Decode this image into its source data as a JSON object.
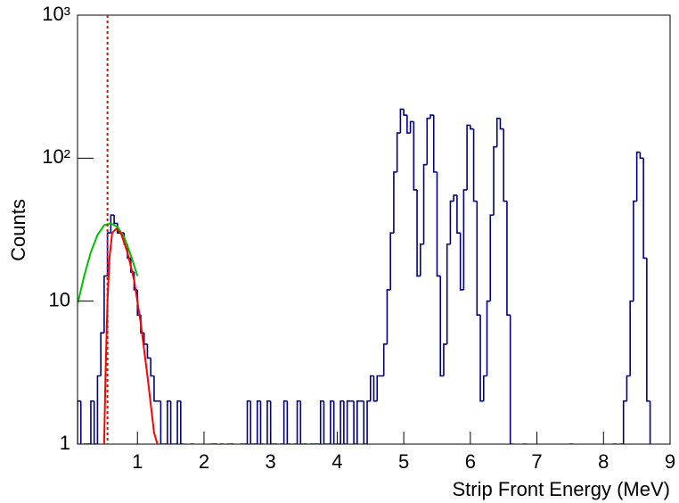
{
  "chart_data": {
    "type": "histogram",
    "x_label": "Strip Front Energy (MeV)",
    "y_label": "Counts",
    "xlim": [
      0.1,
      9
    ],
    "ylim": [
      1,
      1000
    ],
    "log_y": true,
    "xticks": [
      1,
      2,
      3,
      4,
      5,
      6,
      7,
      8,
      9
    ],
    "yticks": [
      1,
      10,
      {
        "value": 100,
        "label": "10²"
      },
      {
        "value": 1000,
        "label": "10³"
      }
    ],
    "color": "#000080",
    "bins": [
      0.1,
      0.15,
      0.2,
      0.25,
      0.3,
      0.35,
      0.4,
      0.45,
      0.5,
      0.55,
      0.6,
      0.65,
      0.7,
      0.75,
      0.8,
      0.85,
      0.9,
      0.95,
      1.0,
      1.05,
      1.1,
      1.15,
      1.2,
      1.25,
      1.3,
      1.35,
      1.4,
      1.45,
      1.5,
      1.55,
      1.6,
      1.65,
      1.7,
      1.75,
      1.8,
      1.85,
      1.9,
      1.95,
      2.0,
      2.05,
      2.1,
      2.15,
      2.2,
      2.25,
      2.3,
      2.35,
      2.4,
      2.45,
      2.5,
      2.55,
      2.6,
      2.65,
      2.7,
      2.75,
      2.8,
      2.85,
      2.9,
      2.95,
      3.0,
      3.05,
      3.1,
      3.15,
      3.2,
      3.25,
      3.3,
      3.35,
      3.4,
      3.45,
      3.5,
      3.55,
      3.6,
      3.65,
      3.7,
      3.75,
      3.8,
      3.85,
      3.9,
      3.95,
      4.0,
      4.05,
      4.1,
      4.15,
      4.2,
      4.25,
      4.3,
      4.35,
      4.4,
      4.45,
      4.5,
      4.55,
      4.6,
      4.65,
      4.7,
      4.75,
      4.8,
      4.85,
      4.9,
      4.95,
      5.0,
      5.05,
      5.1,
      5.15,
      5.2,
      5.25,
      5.3,
      5.35,
      5.4,
      5.45,
      5.5,
      5.55,
      5.6,
      5.65,
      5.7,
      5.75,
      5.8,
      5.85,
      5.9,
      5.95,
      6.0,
      6.05,
      6.1,
      6.15,
      6.2,
      6.25,
      6.3,
      6.35,
      6.4,
      6.45,
      6.5,
      6.55,
      6.6,
      6.65,
      6.7,
      6.75,
      6.8,
      6.85,
      6.9,
      6.95,
      7.0,
      7.05,
      7.1,
      7.15,
      7.2,
      7.25,
      7.3,
      7.35,
      7.4,
      7.45,
      7.5,
      7.55,
      7.6,
      7.65,
      7.7,
      7.75,
      7.8,
      7.85,
      7.9,
      7.95,
      8.0,
      8.05,
      8.1,
      8.15,
      8.2,
      8.25,
      8.3,
      8.35,
      8.4,
      8.45,
      8.5,
      8.55,
      8.6,
      8.65,
      8.7,
      8.75,
      8.8,
      8.85,
      8.9,
      8.95,
      9.0
    ],
    "values": [
      2,
      0,
      1,
      1,
      2,
      1,
      3,
      6,
      15,
      30,
      40,
      35,
      30,
      30,
      25,
      20,
      16,
      12,
      8,
      6,
      5,
      4,
      3,
      2,
      2,
      1,
      1,
      2,
      1,
      1,
      2,
      1,
      0,
      0,
      1,
      0,
      0,
      0,
      0,
      0,
      1,
      1,
      0,
      1,
      0,
      1,
      1,
      0,
      0,
      1,
      1,
      2,
      1,
      1,
      2,
      1,
      0,
      2,
      1,
      1,
      0,
      1,
      2,
      1,
      0,
      1,
      2,
      1,
      1,
      0,
      1,
      1,
      1,
      2,
      1,
      1,
      2,
      1,
      1,
      2,
      1,
      2,
      2,
      1,
      2,
      2,
      1,
      2,
      3,
      2,
      3,
      3,
      5,
      12,
      30,
      80,
      150,
      220,
      200,
      150,
      180,
      60,
      15,
      25,
      90,
      190,
      200,
      80,
      15,
      3,
      5,
      25,
      50,
      55,
      30,
      12,
      60,
      170,
      160,
      50,
      8,
      2,
      3,
      10,
      40,
      120,
      190,
      160,
      50,
      8,
      1,
      0,
      0,
      0,
      1,
      0,
      0,
      0,
      0,
      0,
      0,
      0,
      0,
      0,
      0,
      0,
      0,
      0,
      1,
      0,
      0,
      0,
      0,
      0,
      0,
      0,
      0,
      0,
      0,
      0,
      0,
      1,
      0,
      1,
      2,
      3,
      10,
      50,
      110,
      100,
      20,
      2,
      0,
      0,
      0,
      0,
      0,
      0
    ],
    "fits": [
      {
        "color": "#00c000",
        "x": [
          0.1,
          0.2,
          0.3,
          0.4,
          0.5,
          0.6,
          0.7,
          0.8,
          0.9,
          1.0
        ],
        "values": [
          9.5,
          15,
          22,
          29,
          34,
          35,
          33,
          28,
          21,
          15
        ]
      },
      {
        "color": "#ff0000",
        "x": [
          0.5,
          0.52,
          0.55,
          0.58,
          0.62,
          0.68,
          0.75,
          0.85,
          0.95,
          1.05,
          1.15,
          1.25,
          1.3
        ],
        "values": [
          1,
          3,
          10,
          20,
          30,
          32,
          30,
          22,
          14,
          7,
          3,
          1.2,
          1
        ]
      }
    ],
    "threshold": {
      "x": 0.55,
      "color": "#ff0000"
    }
  }
}
